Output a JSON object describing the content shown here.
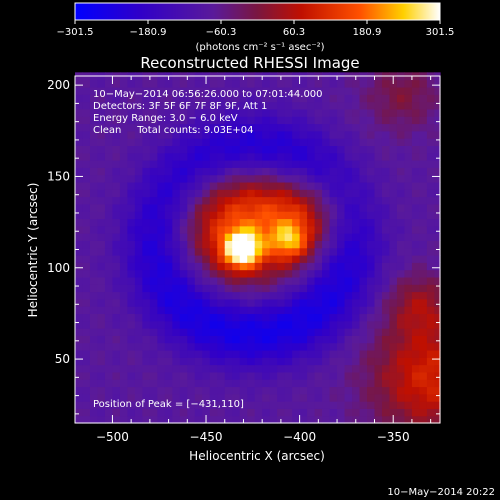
{
  "chart_data": {
    "type": "heatmap",
    "title": "Reconstructed RHESSI Image",
    "xlabel": "Heliocentric X (arcsec)",
    "ylabel": "Heliocentric Y (arcsec)",
    "xlim": [
      -520,
      -325
    ],
    "ylim": [
      15,
      205
    ],
    "x_ticks": [
      -500,
      -450,
      -400,
      -350
    ],
    "y_ticks": [
      50,
      100,
      150,
      200
    ],
    "x_tick_labels": [
      "−500",
      "−450",
      "−400",
      "−350"
    ],
    "y_tick_labels": [
      "50",
      "100",
      "150",
      "200"
    ],
    "colorbar": {
      "min": -301.5,
      "max": 301.5,
      "ticks": [
        -301.5,
        -180.9,
        -60.3,
        60.3,
        180.9,
        301.5
      ],
      "tick_labels": [
        "−301.5",
        "−180.9",
        "−60.3",
        "60.3",
        "180.9",
        "301.5"
      ],
      "units_text": "(photons cm⁻² s⁻¹ asec⁻²)",
      "colormap": "rhessi-blue-purple-red-yellow-white"
    },
    "annotations": [
      "10−May−2014 06:56:26.000 to 07:01:44.000",
      "Detectors: 3F 5F 6F 7F 8F 9F, Att 1",
      "Energy Range: 3.0 − 6.0 keV",
      "Clean     Total counts: 9.03E+04"
    ],
    "peak_label": "Position of Peak = [−431,110]",
    "peak": {
      "x": -431,
      "y": 110,
      "value": 301.5
    },
    "features": [
      {
        "x": -431,
        "y": 110,
        "sigma": 7,
        "amp": 300
      },
      {
        "x": -405,
        "y": 115,
        "sigma": 7,
        "amp": 150
      },
      {
        "x": -438,
        "y": 125,
        "sigma": 24,
        "amp": 190
      },
      {
        "x": -402,
        "y": 125,
        "sigma": 22,
        "amp": 120
      },
      {
        "x": -392,
        "y": 132,
        "sigma": 15,
        "amp": 90
      },
      {
        "x": -330,
        "y": 40,
        "sigma": 22,
        "amp": 180
      },
      {
        "x": -336,
        "y": 80,
        "sigma": 12,
        "amp": 100
      },
      {
        "x": -345,
        "y": 195,
        "sigma": 14,
        "amp": 80
      }
    ],
    "dark_ring": {
      "x": -425,
      "y": 115,
      "radius": 50,
      "width": 14,
      "amp": -180
    },
    "background": -80
  },
  "footer": {
    "date": "10−May−2014 20:22"
  }
}
